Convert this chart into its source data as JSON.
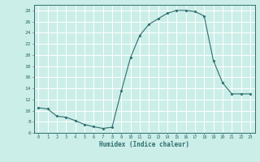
{
  "x": [
    0,
    1,
    2,
    3,
    4,
    5,
    6,
    7,
    8,
    9,
    10,
    11,
    12,
    13,
    14,
    15,
    16,
    17,
    18,
    19,
    20,
    21,
    22,
    23
  ],
  "y": [
    10.5,
    10.3,
    9.0,
    8.8,
    8.2,
    7.5,
    7.1,
    6.8,
    7.0,
    13.5,
    19.5,
    23.5,
    25.5,
    26.5,
    27.5,
    28.0,
    28.0,
    27.8,
    27.0,
    19.0,
    15.0,
    13.0,
    13.0,
    13.0
  ],
  "xlim": [
    -0.5,
    23.5
  ],
  "ylim": [
    6,
    29
  ],
  "yticks": [
    6,
    8,
    10,
    12,
    14,
    16,
    18,
    20,
    22,
    24,
    26,
    28
  ],
  "xticks": [
    0,
    1,
    2,
    3,
    4,
    5,
    6,
    7,
    8,
    9,
    10,
    11,
    12,
    13,
    14,
    15,
    16,
    17,
    18,
    19,
    20,
    21,
    22,
    23
  ],
  "xlabel": "Humidex (Indice chaleur)",
  "line_color": "#2d6e6e",
  "marker": "D",
  "marker_size": 1.5,
  "bg_color": "#cceee8",
  "grid_color": "#ffffff",
  "font_color": "#2d6e6e"
}
